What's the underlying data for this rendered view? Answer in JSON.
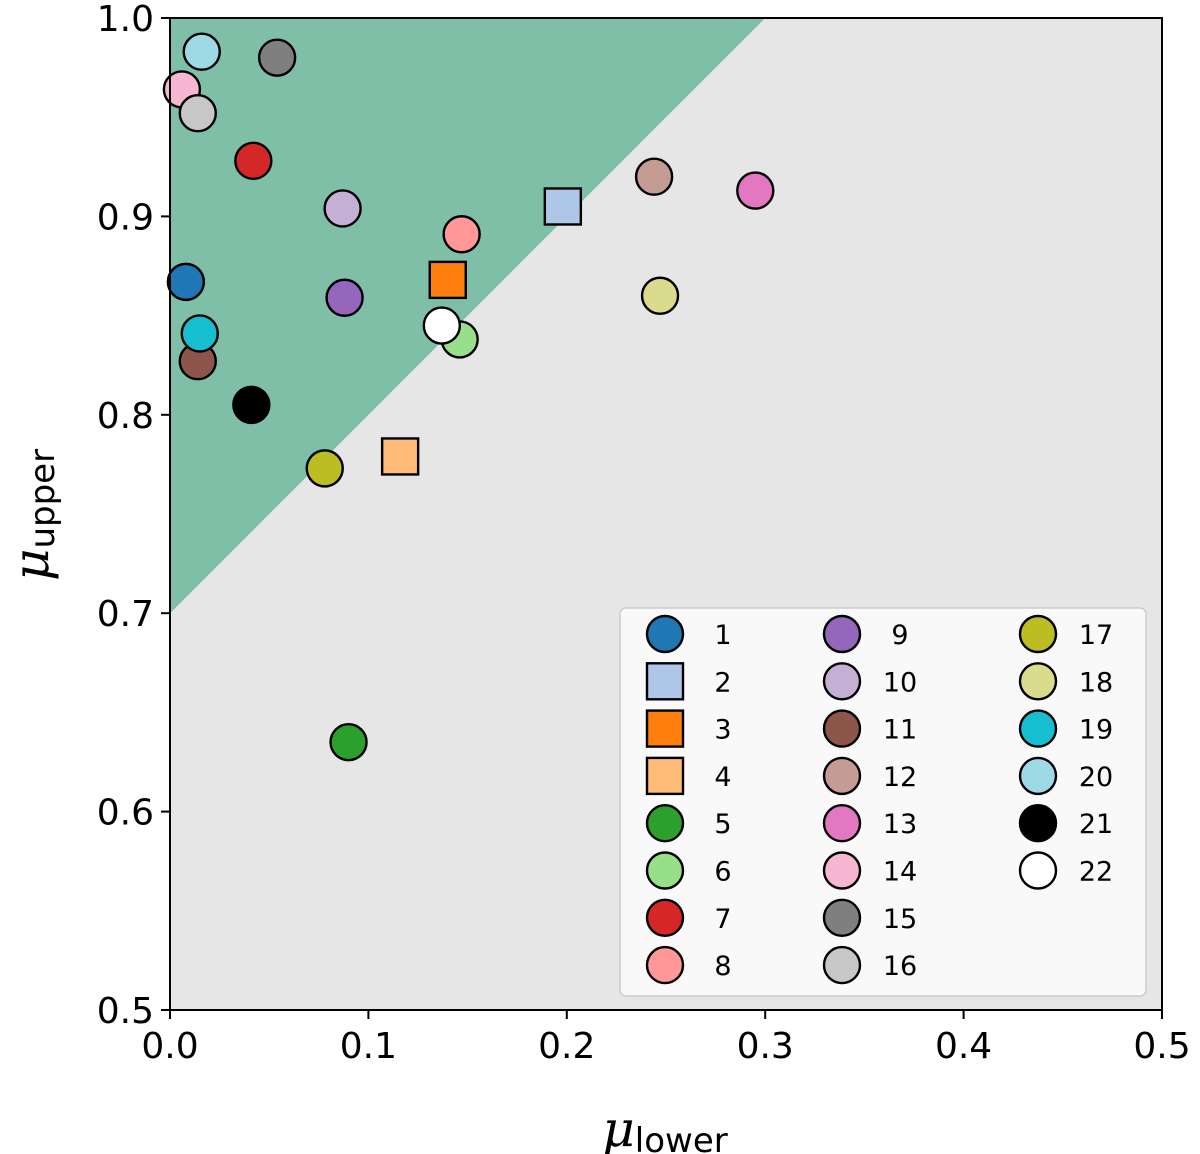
{
  "chart_data": {
    "type": "scatter",
    "xlim": [
      0.0,
      0.5
    ],
    "ylim": [
      0.5,
      1.0
    ],
    "xticks": [
      "0.0",
      "0.1",
      "0.2",
      "0.3",
      "0.4",
      "0.5"
    ],
    "yticks": [
      "0.5",
      "0.6",
      "0.7",
      "0.8",
      "0.9",
      "1.0"
    ],
    "xlabel": {
      "symbol": "μ",
      "subscript": "lower"
    },
    "ylabel": {
      "symbol": "μ",
      "subscript": "upper"
    },
    "grid": false,
    "legend_position": "bottom-right",
    "legend_columns": 3,
    "background_color": "#e6e6e6",
    "region": {
      "description": "",
      "color": "#7fbfa7",
      "boundary": {
        "x0": 0.0,
        "y0": 0.7,
        "x1": 0.3,
        "y1": 1.0
      }
    },
    "series": [
      {
        "name": "1",
        "marker": "circle",
        "color": "#1f77b4",
        "x": 0.008,
        "y": 0.867
      },
      {
        "name": "2",
        "marker": "square",
        "color": "#aec7e8",
        "x": 0.198,
        "y": 0.905
      },
      {
        "name": "3",
        "marker": "square",
        "color": "#ff7f0e",
        "x": 0.14,
        "y": 0.868
      },
      {
        "name": "4",
        "marker": "square",
        "color": "#ffbb78",
        "x": 0.116,
        "y": 0.779
      },
      {
        "name": "5",
        "marker": "circle",
        "color": "#2ca02c",
        "x": 0.09,
        "y": 0.635
      },
      {
        "name": "6",
        "marker": "circle",
        "color": "#98df8a",
        "x": 0.146,
        "y": 0.838
      },
      {
        "name": "7",
        "marker": "circle",
        "color": "#d62728",
        "x": 0.042,
        "y": 0.928
      },
      {
        "name": "8",
        "marker": "circle",
        "color": "#ff9896",
        "x": 0.147,
        "y": 0.891
      },
      {
        "name": "9",
        "marker": "circle",
        "color": "#9467bd",
        "x": 0.088,
        "y": 0.859
      },
      {
        "name": "10",
        "marker": "circle",
        "color": "#c5b0d5",
        "x": 0.087,
        "y": 0.904
      },
      {
        "name": "11",
        "marker": "circle",
        "color": "#8c564b",
        "x": 0.014,
        "y": 0.827
      },
      {
        "name": "12",
        "marker": "circle",
        "color": "#c49c94",
        "x": 0.244,
        "y": 0.92
      },
      {
        "name": "13",
        "marker": "circle",
        "color": "#e377c2",
        "x": 0.295,
        "y": 0.913
      },
      {
        "name": "14",
        "marker": "circle",
        "color": "#f7b6d2",
        "x": 0.006,
        "y": 0.964
      },
      {
        "name": "15",
        "marker": "circle",
        "color": "#7f7f7f",
        "x": 0.054,
        "y": 0.98
      },
      {
        "name": "16",
        "marker": "circle",
        "color": "#c7c7c7",
        "x": 0.014,
        "y": 0.952
      },
      {
        "name": "17",
        "marker": "circle",
        "color": "#bcbd22",
        "x": 0.078,
        "y": 0.773
      },
      {
        "name": "18",
        "marker": "circle",
        "color": "#dbdb8d",
        "x": 0.247,
        "y": 0.86
      },
      {
        "name": "19",
        "marker": "circle",
        "color": "#17becf",
        "x": 0.015,
        "y": 0.841
      },
      {
        "name": "20",
        "marker": "circle",
        "color": "#9edae5",
        "x": 0.016,
        "y": 0.983
      },
      {
        "name": "21",
        "marker": "circle",
        "color": "#000000",
        "x": 0.041,
        "y": 0.805
      },
      {
        "name": "22",
        "marker": "circle",
        "color": "#ffffff",
        "x": 0.137,
        "y": 0.845
      }
    ]
  }
}
